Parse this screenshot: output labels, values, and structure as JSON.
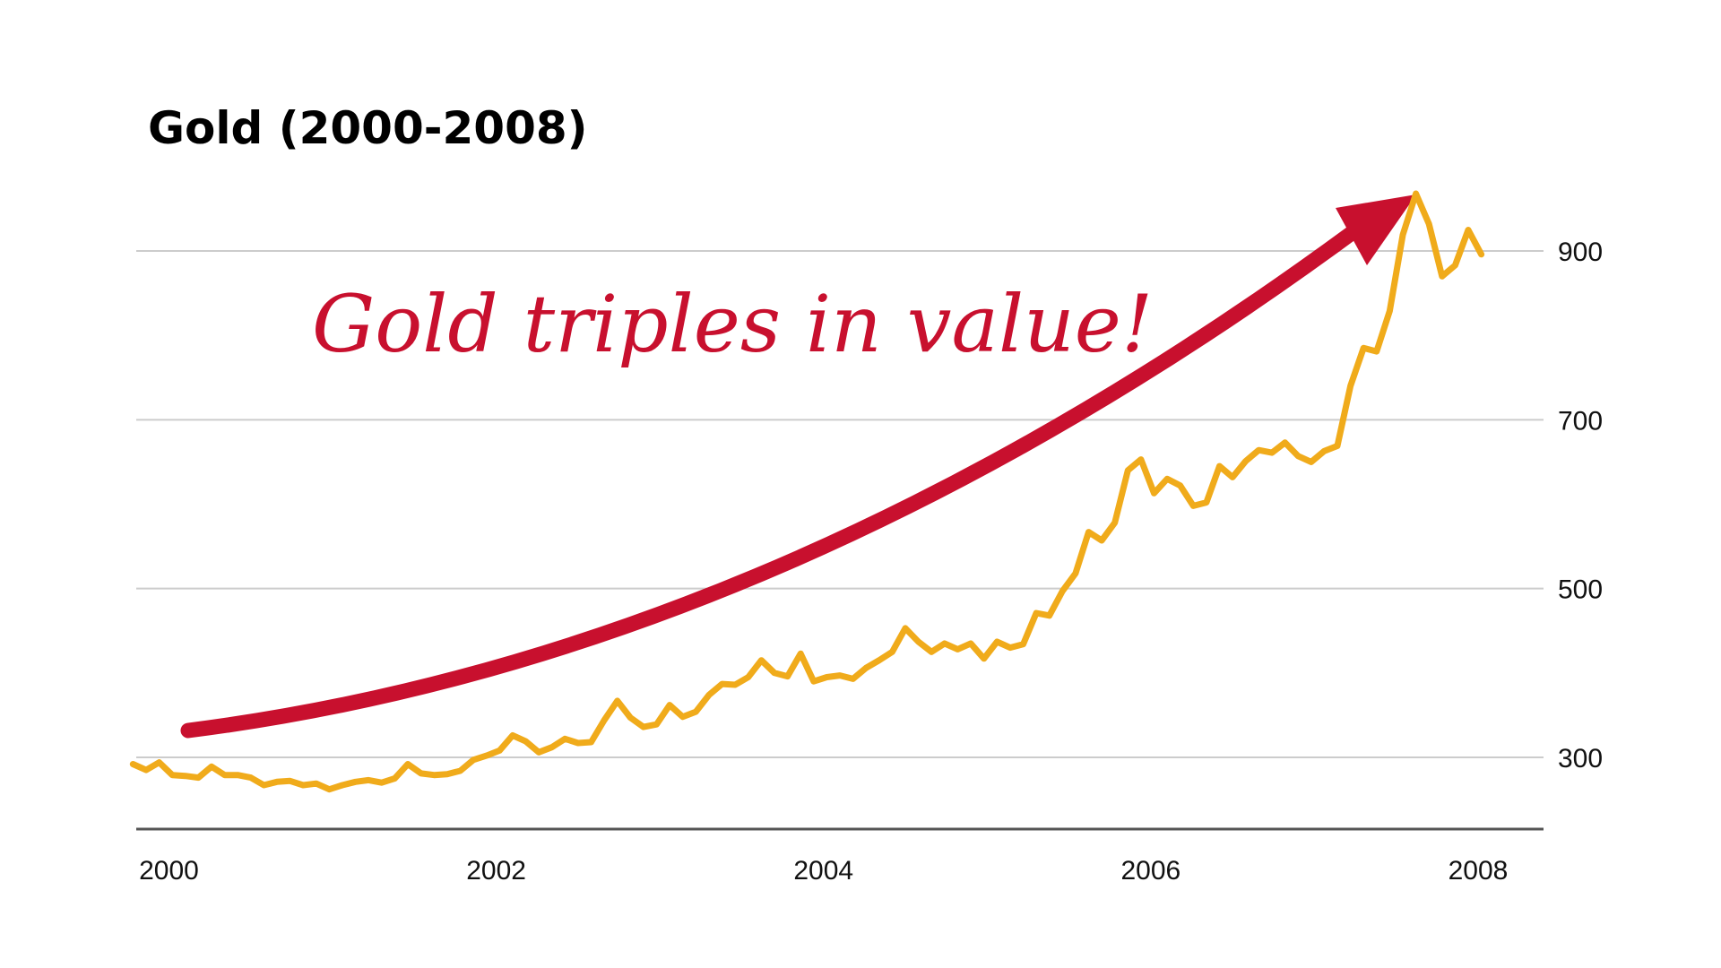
{
  "chart_data": {
    "type": "line",
    "title": "Gold (2000-2008)",
    "xlabel": "",
    "ylabel": "",
    "x_ticks": [
      "2000",
      "2002",
      "2004",
      "2006",
      "2008"
    ],
    "y_ticks": [
      "300",
      "500",
      "700",
      "900"
    ],
    "xlim": [
      1999.8,
      2008.4
    ],
    "ylim": [
      215,
      985
    ],
    "grid": true,
    "legend": "none",
    "series": [
      {
        "color": "#f0ab1b",
        "points": [
          [
            1999.78,
            292
          ],
          [
            1999.86,
            285
          ],
          [
            1999.94,
            294
          ],
          [
            2000.02,
            279
          ],
          [
            2000.1,
            278
          ],
          [
            2000.18,
            276
          ],
          [
            2000.26,
            289
          ],
          [
            2000.34,
            279
          ],
          [
            2000.42,
            279
          ],
          [
            2000.5,
            276
          ],
          [
            2000.58,
            267
          ],
          [
            2000.66,
            271
          ],
          [
            2000.74,
            272
          ],
          [
            2000.82,
            267
          ],
          [
            2000.9,
            269
          ],
          [
            2000.98,
            262
          ],
          [
            2001.06,
            267
          ],
          [
            2001.14,
            271
          ],
          [
            2001.22,
            273
          ],
          [
            2001.3,
            270
          ],
          [
            2001.38,
            275
          ],
          [
            2001.46,
            292
          ],
          [
            2001.54,
            281
          ],
          [
            2001.62,
            279
          ],
          [
            2001.7,
            280
          ],
          [
            2001.78,
            284
          ],
          [
            2001.86,
            297
          ],
          [
            2001.94,
            302
          ],
          [
            2002.02,
            308
          ],
          [
            2002.1,
            326
          ],
          [
            2002.18,
            319
          ],
          [
            2002.26,
            306
          ],
          [
            2002.34,
            312
          ],
          [
            2002.42,
            322
          ],
          [
            2002.5,
            317
          ],
          [
            2002.58,
            318
          ],
          [
            2002.66,
            344
          ],
          [
            2002.74,
            367
          ],
          [
            2002.82,
            347
          ],
          [
            2002.9,
            336
          ],
          [
            2002.98,
            339
          ],
          [
            2003.06,
            362
          ],
          [
            2003.14,
            348
          ],
          [
            2003.22,
            354
          ],
          [
            2003.3,
            374
          ],
          [
            2003.38,
            387
          ],
          [
            2003.46,
            386
          ],
          [
            2003.54,
            395
          ],
          [
            2003.62,
            415
          ],
          [
            2003.7,
            400
          ],
          [
            2003.78,
            396
          ],
          [
            2003.86,
            423
          ],
          [
            2003.94,
            390
          ],
          [
            2004.02,
            395
          ],
          [
            2004.1,
            397
          ],
          [
            2004.18,
            393
          ],
          [
            2004.26,
            406
          ],
          [
            2004.34,
            415
          ],
          [
            2004.42,
            425
          ],
          [
            2004.5,
            453
          ],
          [
            2004.58,
            437
          ],
          [
            2004.66,
            425
          ],
          [
            2004.74,
            435
          ],
          [
            2004.82,
            428
          ],
          [
            2004.9,
            435
          ],
          [
            2004.98,
            417
          ],
          [
            2005.06,
            437
          ],
          [
            2005.14,
            430
          ],
          [
            2005.22,
            434
          ],
          [
            2005.3,
            471
          ],
          [
            2005.38,
            468
          ],
          [
            2005.46,
            497
          ],
          [
            2005.54,
            518
          ],
          [
            2005.62,
            567
          ],
          [
            2005.7,
            557
          ],
          [
            2005.78,
            578
          ],
          [
            2005.86,
            640
          ],
          [
            2005.94,
            653
          ],
          [
            2006.02,
            613
          ],
          [
            2006.1,
            630
          ],
          [
            2006.18,
            622
          ],
          [
            2006.26,
            598
          ],
          [
            2006.34,
            602
          ],
          [
            2006.42,
            645
          ],
          [
            2006.5,
            632
          ],
          [
            2006.58,
            651
          ],
          [
            2006.66,
            664
          ],
          [
            2006.74,
            661
          ],
          [
            2006.82,
            673
          ],
          [
            2006.9,
            657
          ],
          [
            2006.98,
            650
          ],
          [
            2007.06,
            663
          ],
          [
            2007.14,
            669
          ],
          [
            2007.22,
            740
          ],
          [
            2007.3,
            785
          ],
          [
            2007.38,
            781
          ],
          [
            2007.46,
            829
          ],
          [
            2007.54,
            919
          ],
          [
            2007.62,
            968
          ],
          [
            2007.7,
            932
          ],
          [
            2007.78,
            870
          ],
          [
            2007.86,
            883
          ],
          [
            2007.94,
            925
          ],
          [
            2008.02,
            896
          ]
        ]
      }
    ],
    "annotations": [
      {
        "text": "Gold triples in value!",
        "color": "#c8102e"
      }
    ]
  }
}
